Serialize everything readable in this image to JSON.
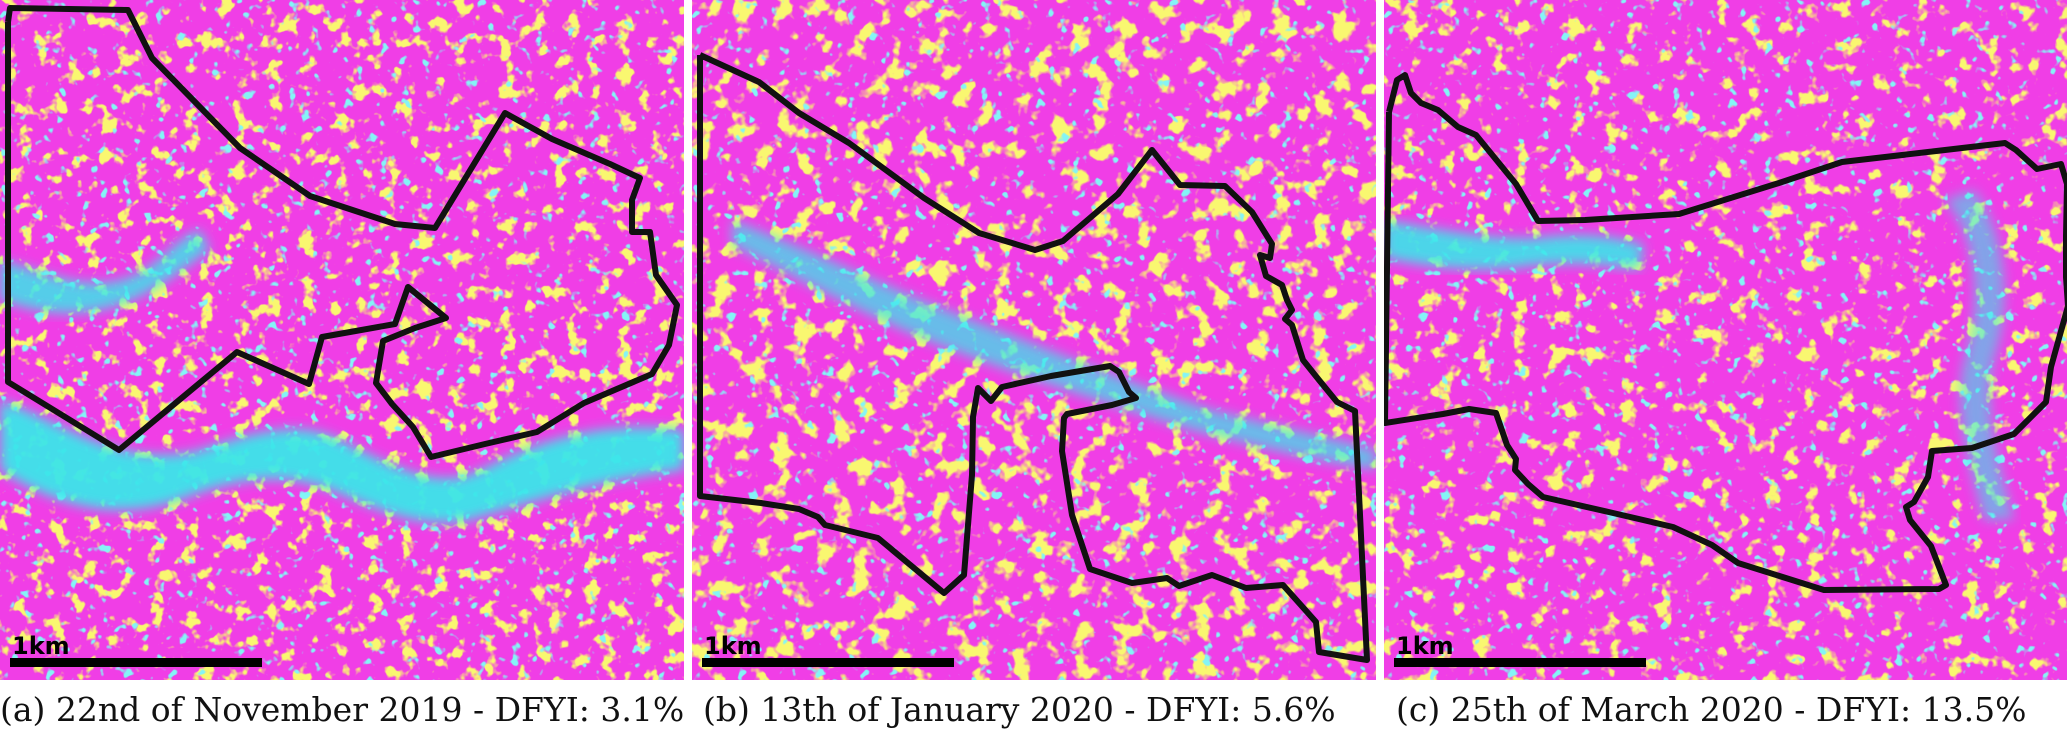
{
  "colors": {
    "magenta": "#f03ee6",
    "yellow": "#f3ee2a",
    "cyan": "#3ae6ea",
    "outline": "#111111",
    "scale_bar": "#000000"
  },
  "panels": [
    {
      "caption": "(a) 22nd of November 2019 - DFYI: 3.1%",
      "scale_label": "1km"
    },
    {
      "caption": "(b) 13th of January 2020 - DFYI: 5.6%",
      "scale_label": "1km"
    },
    {
      "caption": "(c) 25th of March 2020 - DFYI: 13.5%",
      "scale_label": "1km"
    }
  ]
}
